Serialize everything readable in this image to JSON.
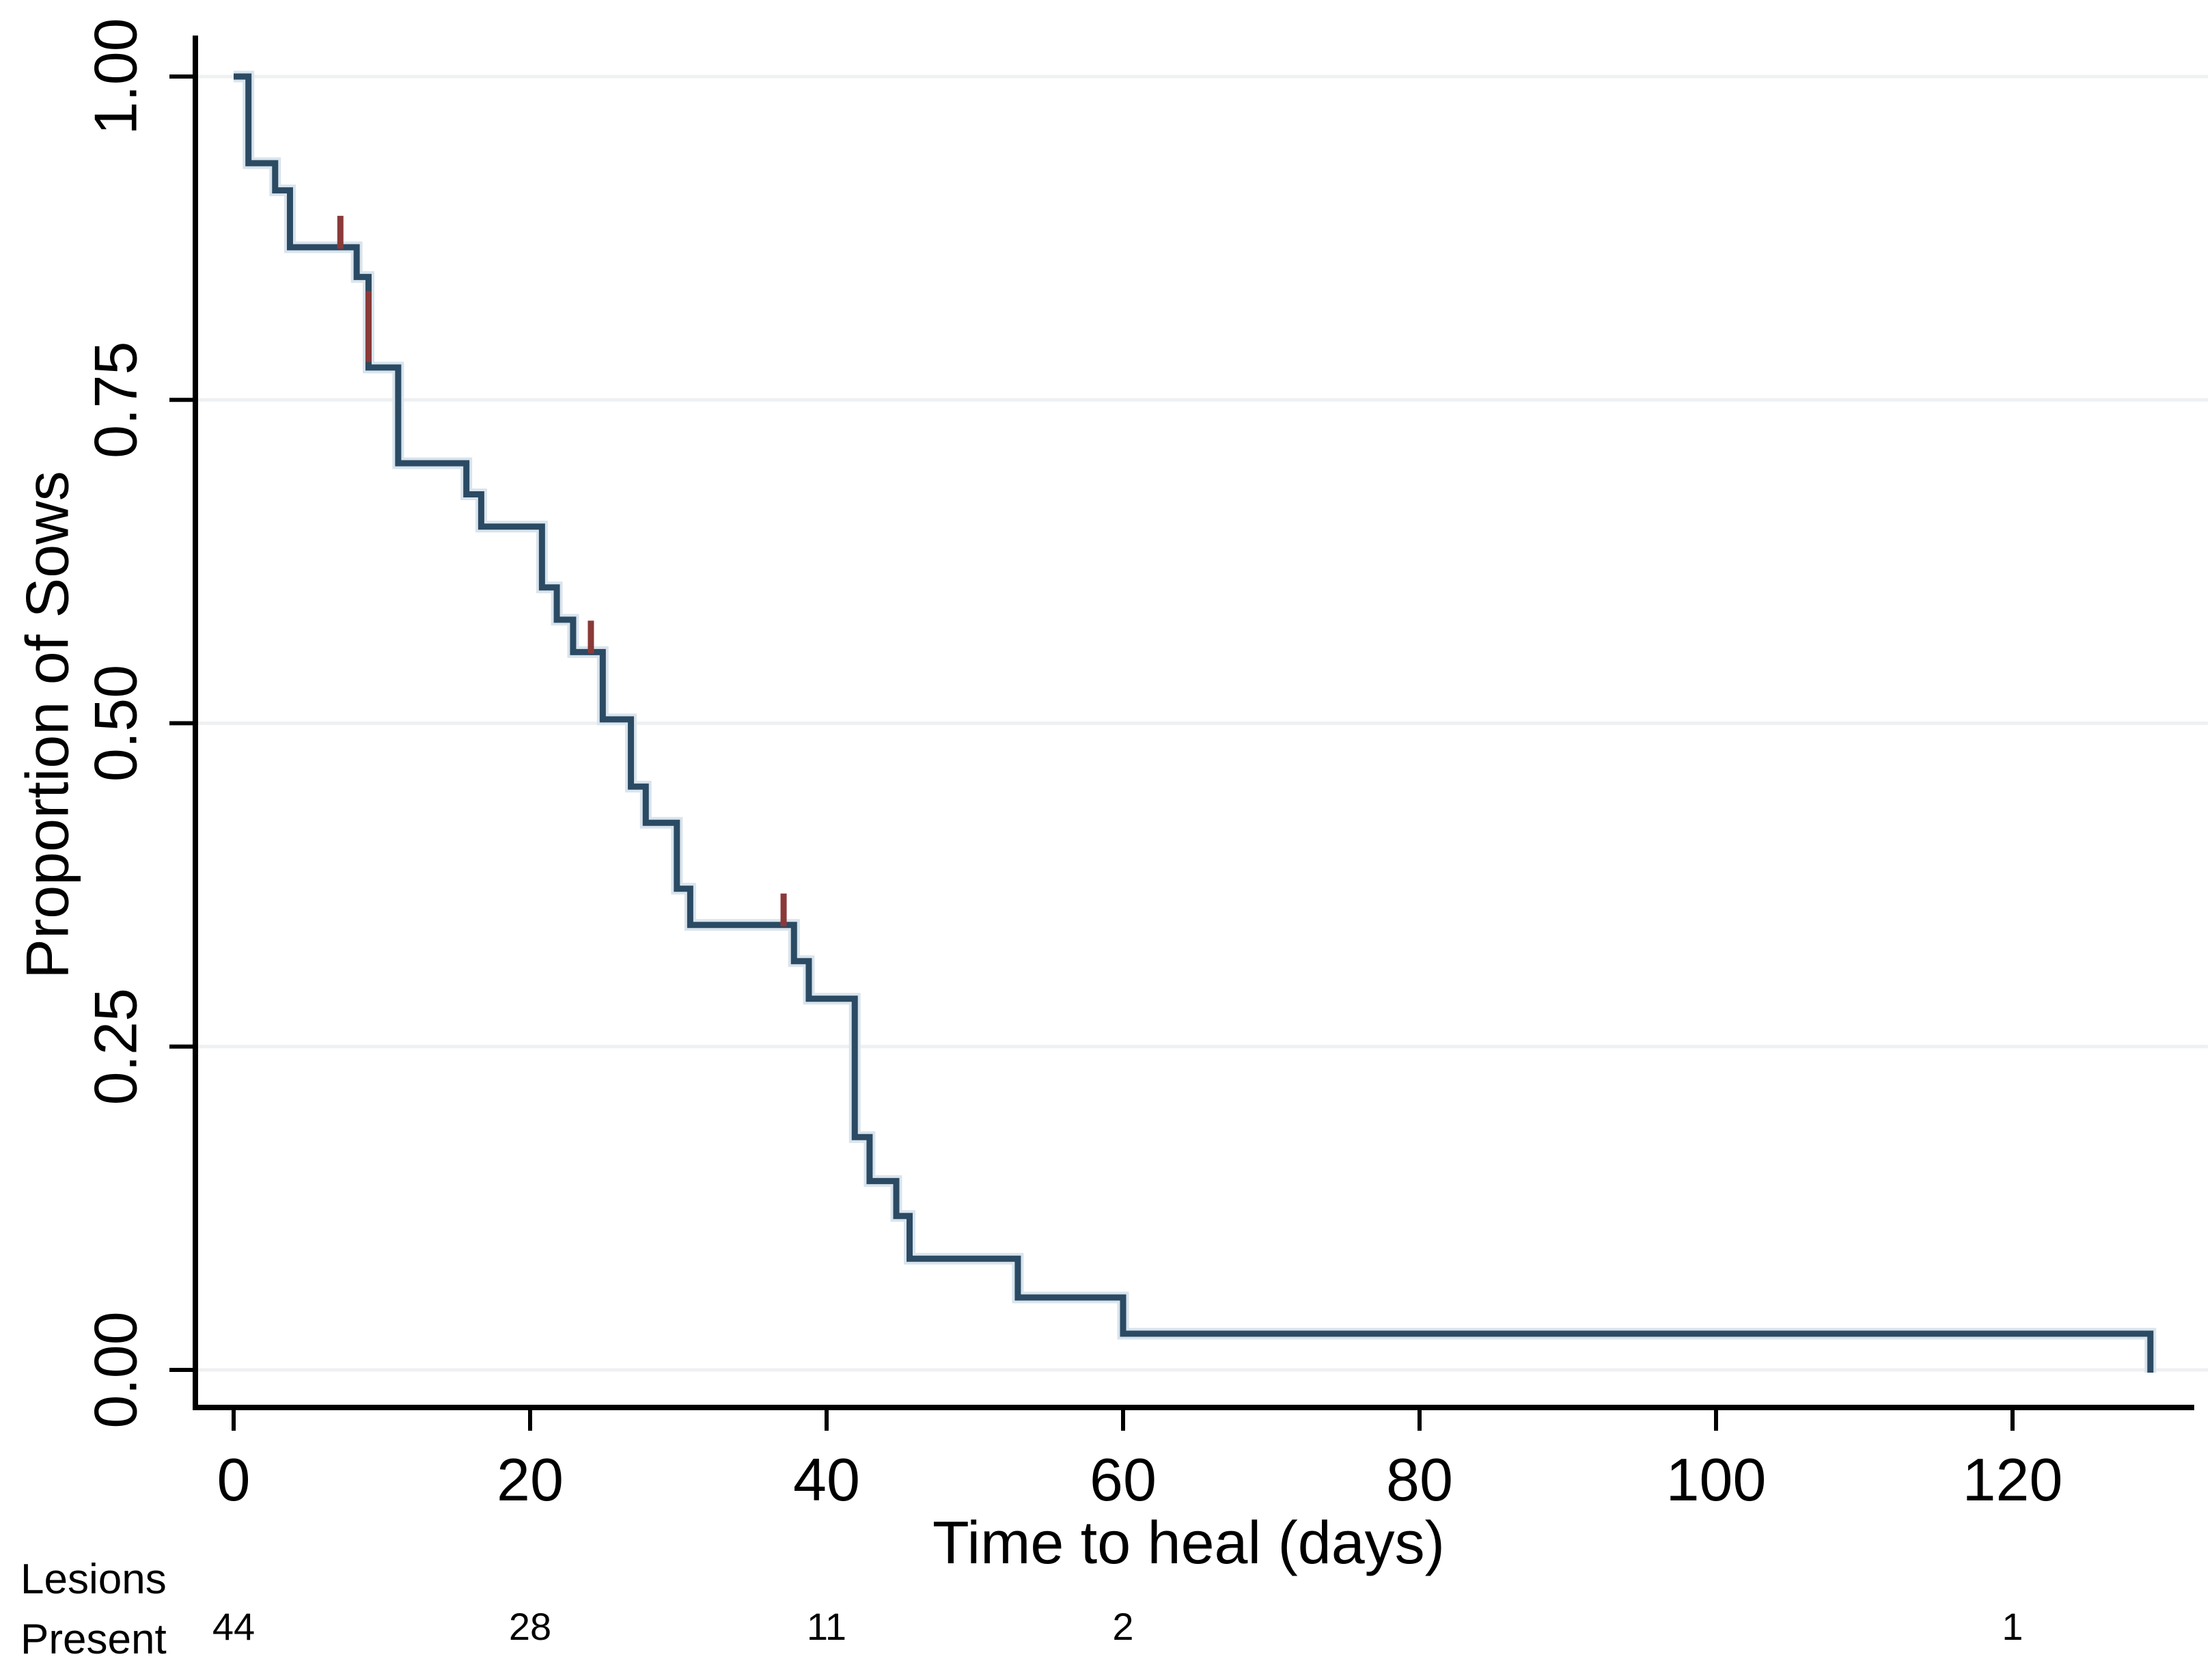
{
  "chart_data": {
    "type": "line",
    "subtype": "kaplan-meier-step",
    "title": "",
    "xlabel": "Time to heal (days)",
    "ylabel": "Proportion of Sows",
    "x_ticks": [
      0,
      20,
      40,
      60,
      80,
      100,
      120
    ],
    "x_tick_labels": [
      "0",
      "20",
      "40",
      "60",
      "80",
      "100",
      "120"
    ],
    "y_ticks": [
      0.0,
      0.25,
      0.5,
      0.75,
      1.0
    ],
    "y_tick_labels": [
      "0.00",
      "0.25",
      "0.50",
      "0.75",
      "1.00"
    ],
    "xlim": [
      0,
      133
    ],
    "ylim": [
      0,
      1
    ],
    "grid": true,
    "legend": "none",
    "colors": {
      "curve": "#2b4a63",
      "curve_halo": "#d9e4ed",
      "censor": "#8a3a38",
      "grid": "#eef0f2",
      "axis": "#000000",
      "background": "#ffffff"
    },
    "km_steps": [
      [
        0,
        1.0
      ],
      [
        1.0,
        0.933
      ],
      [
        2.8,
        0.912
      ],
      [
        3.8,
        0.868
      ],
      [
        8.3,
        0.845
      ],
      [
        9.1,
        0.775
      ],
      [
        11.1,
        0.701
      ],
      [
        15.7,
        0.677
      ],
      [
        16.7,
        0.652
      ],
      [
        20.8,
        0.605
      ],
      [
        21.8,
        0.58
      ],
      [
        22.9,
        0.555
      ],
      [
        24.9,
        0.503
      ],
      [
        26.8,
        0.451
      ],
      [
        27.8,
        0.423
      ],
      [
        29.9,
        0.372
      ],
      [
        30.8,
        0.344
      ],
      [
        37.8,
        0.316
      ],
      [
        38.8,
        0.287
      ],
      [
        41.9,
        0.18
      ],
      [
        42.9,
        0.146
      ],
      [
        44.7,
        0.119
      ],
      [
        45.6,
        0.086
      ],
      [
        52.9,
        0.056
      ],
      [
        60.0,
        0.028
      ]
    ],
    "final_drop": {
      "day": 129.3,
      "to": 0.0
    },
    "censored": [
      {
        "day": 7.2,
        "p": 0.868,
        "on_drop": false
      },
      {
        "day": 9.1,
        "p": 0.775,
        "on_drop": true
      },
      {
        "day": 24.1,
        "p": 0.555,
        "on_drop": false
      },
      {
        "day": 37.1,
        "p": 0.344,
        "on_drop": false
      }
    ],
    "risk_table": {
      "label_line1": "Lesions",
      "label_line2": "Present",
      "entries": [
        {
          "day": 0,
          "count": "44"
        },
        {
          "day": 20,
          "count": "28"
        },
        {
          "day": 40,
          "count": "11"
        },
        {
          "day": 60,
          "count": "2"
        },
        {
          "day": 120,
          "count": "1"
        }
      ]
    }
  }
}
